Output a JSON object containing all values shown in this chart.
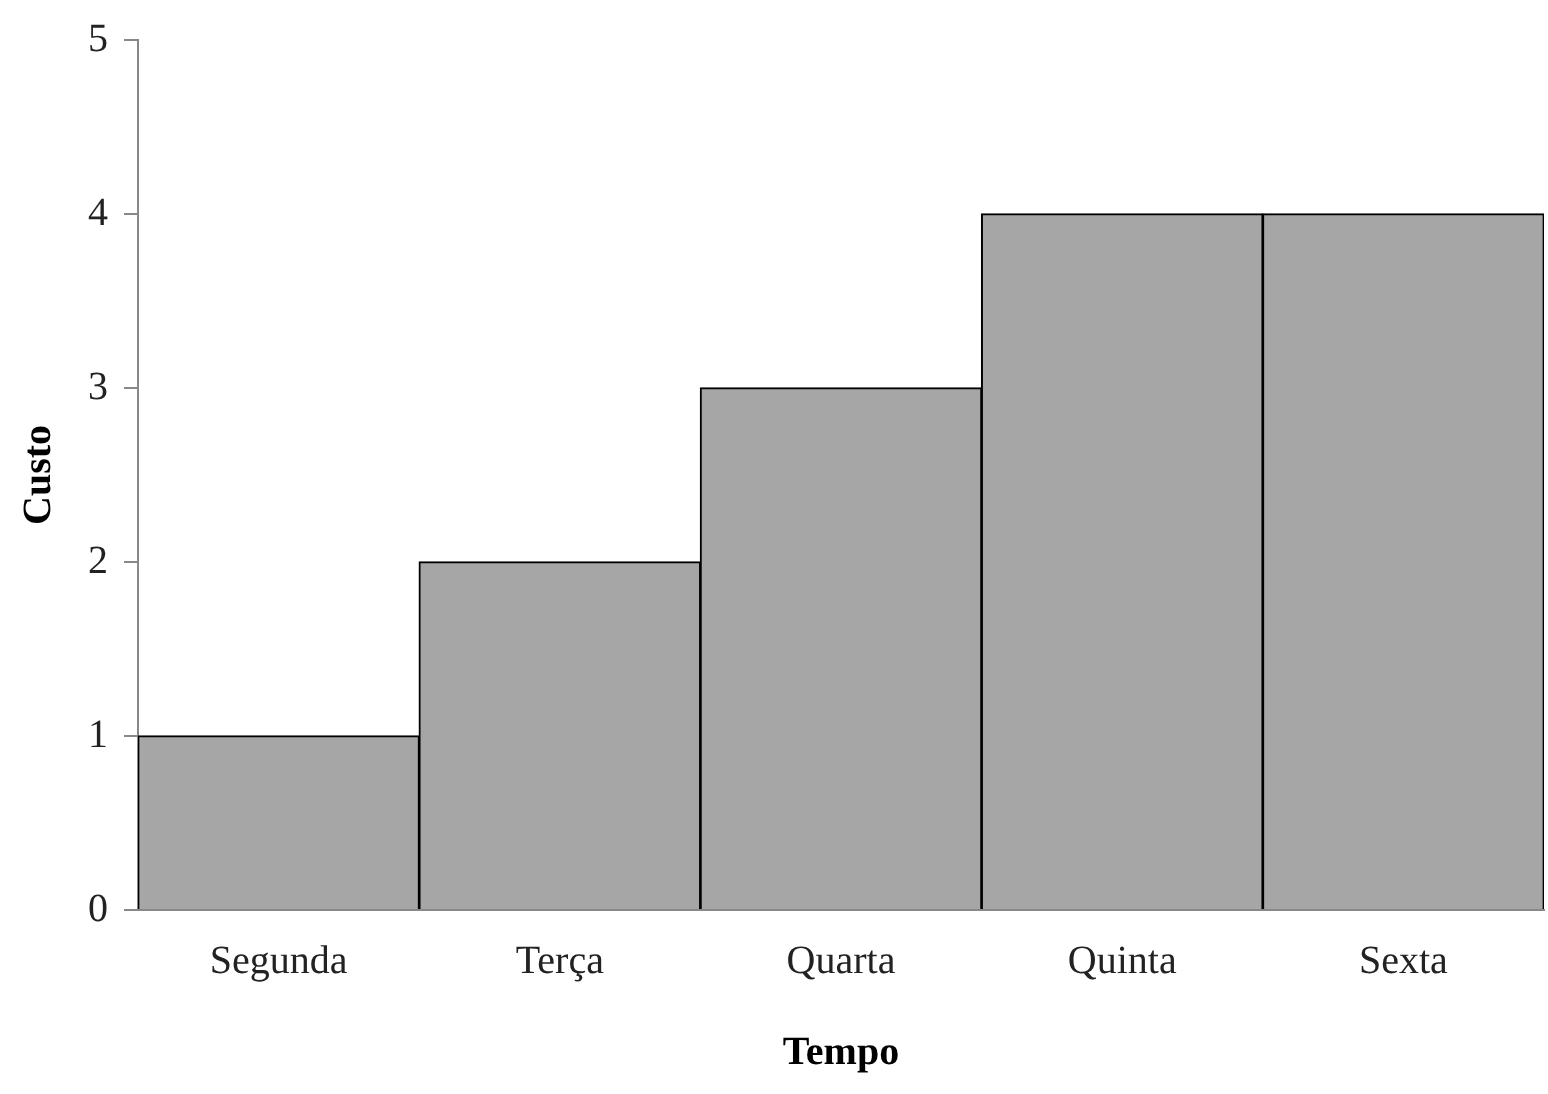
{
  "chart_data": {
    "type": "bar",
    "xlabel": "Tempo",
    "ylabel": "Custo",
    "categories": [
      "Segunda",
      "Terça",
      "Quarta",
      "Quinta",
      "Sexta"
    ],
    "values": [
      1,
      2,
      3,
      4,
      4
    ],
    "color": "#a6a6a6",
    "ylim": [
      0,
      5
    ],
    "yticks": [
      0,
      1,
      2,
      3,
      4,
      5
    ],
    "grid": false,
    "legend": false
  }
}
